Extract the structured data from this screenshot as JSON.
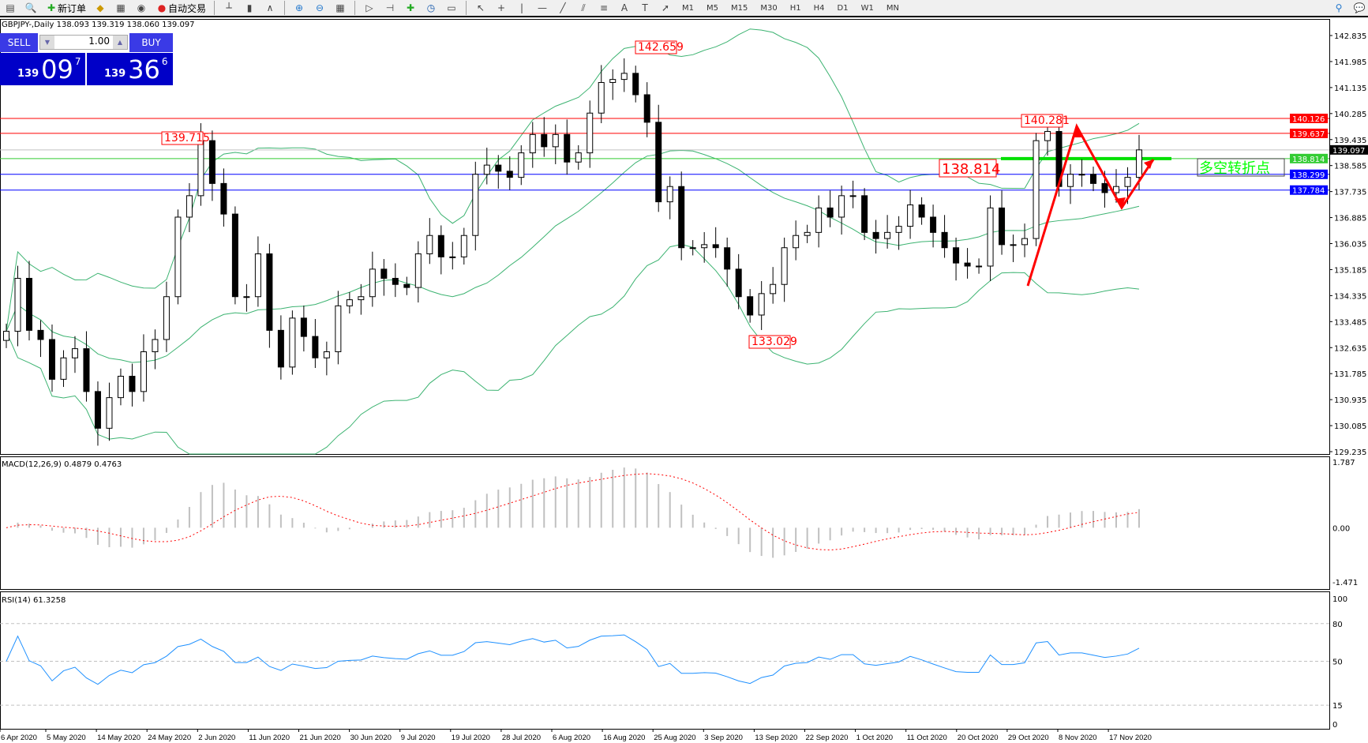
{
  "toolbar": {
    "new_order": "新订单",
    "auto_trading": "自动交易",
    "icons": [
      "new-chart-icon",
      "zoom-profile-icon",
      "new-order-icon",
      "market-watch-icon",
      "data-window-icon",
      "signals-icon",
      "auto-trading-icon",
      "bar-chart-icon",
      "candlestick-icon",
      "line-chart-icon",
      "zoom-in-icon",
      "zoom-out-icon",
      "tile-windows-icon",
      "autoscroll-icon",
      "chart-shift-icon",
      "indicators-icon",
      "periods-icon",
      "templates-icon",
      "cursor-icon",
      "crosshair-icon",
      "vertical-line-icon",
      "horizontal-line-icon",
      "trendline-icon",
      "equidistant-channel-icon",
      "fibonacci-icon",
      "text-icon",
      "text-label-icon",
      "arrows-icon",
      "search-icon",
      "chat-icon"
    ],
    "timeframes": [
      "M1",
      "M5",
      "M15",
      "M30",
      "H1",
      "H4",
      "D1",
      "W1",
      "MN"
    ]
  },
  "chart": {
    "header": "GBPJPY-,Daily  138.093 139.319 138.060 139.097",
    "one_click": {
      "sell": "SELL",
      "buy": "BUY",
      "lots": "1.00",
      "bid_big": "139",
      "bid_mid": "09",
      "bid_sup": "7",
      "ask_big": "139",
      "ask_mid": "36",
      "ask_sup": "6"
    }
  },
  "chart_data": {
    "type": "candlestick",
    "symbol": "GBPJPY-",
    "timeframe": "Daily",
    "price_ticks": [
      "142.835",
      "141.985",
      "141.135",
      "140.285",
      "139.435",
      "138.585",
      "137.735",
      "136.885",
      "136.035",
      "135.185",
      "134.335",
      "133.485",
      "132.635",
      "131.785",
      "130.935",
      "130.085",
      "129.235"
    ],
    "ylim": [
      129.235,
      142.835
    ],
    "date_labels": [
      "6 Apr 2020",
      "5 May 2020",
      "14 May 2020",
      "24 May 2020",
      "2 Jun 2020",
      "11 Jun 2020",
      "21 Jun 2020",
      "30 Jun 2020",
      "9 Jul 2020",
      "19 Jul 2020",
      "28 Jul 2020",
      "6 Aug 2020",
      "16 Aug 2020",
      "25 Aug 2020",
      "3 Sep 2020",
      "13 Sep 2020",
      "22 Sep 2020",
      "1 Oct 2020",
      "11 Oct 2020",
      "20 Oct 2020",
      "29 Oct 2020",
      "8 Nov 2020",
      "17 Nov 2020"
    ],
    "close": [
      133.17,
      134.9,
      133.2,
      132.9,
      131.6,
      132.3,
      132.6,
      131.2,
      130.0,
      131.0,
      131.7,
      131.2,
      132.5,
      132.9,
      134.3,
      136.9,
      137.6,
      139.4,
      138.0,
      137.0,
      134.3,
      134.3,
      135.7,
      133.2,
      132.0,
      133.6,
      133.0,
      132.3,
      132.5,
      134.0,
      134.2,
      134.3,
      135.2,
      134.9,
      134.7,
      134.6,
      135.7,
      136.3,
      135.6,
      135.6,
      136.3,
      138.3,
      138.6,
      138.4,
      138.2,
      139.0,
      139.6,
      139.2,
      139.6,
      138.7,
      139.0,
      140.3,
      141.3,
      141.4,
      141.6,
      140.9,
      140.0,
      137.4,
      137.9,
      135.9,
      135.9,
      136.0,
      135.9,
      135.2,
      134.3,
      133.7,
      134.4,
      134.7,
      135.9,
      136.3,
      136.4,
      137.2,
      136.9,
      137.6,
      137.6,
      136.4,
      136.2,
      136.4,
      136.6,
      137.3,
      136.9,
      136.4,
      135.9,
      135.4,
      135.3,
      135.3,
      137.2,
      136.0,
      136.0,
      136.2,
      139.4,
      139.7,
      137.9,
      138.3,
      138.3,
      138.0,
      137.7,
      137.9,
      138.2,
      139.097
    ],
    "hlines": [
      {
        "price": "140.126",
        "color": "#ff0000"
      },
      {
        "price": "139.637",
        "color": "#ff0000"
      },
      {
        "price": "139.097",
        "color": "#000000",
        "line": "#c0c0c0"
      },
      {
        "price": "138.814",
        "color": "#33cc33"
      },
      {
        "price": "138.299",
        "color": "#0000ff"
      },
      {
        "price": "137.784",
        "color": "#0000ff"
      }
    ],
    "annotations": [
      {
        "text": "142.659",
        "bar": 53
      },
      {
        "text": "139.715",
        "bar": 17
      },
      {
        "text": "133.029",
        "bar": 65
      },
      {
        "text": "140.281",
        "bar": 91
      },
      {
        "text": "138.814",
        "bar": 84
      }
    ],
    "note_text": "多空转折点",
    "indicators": {
      "bollinger": {
        "period": 20,
        "deviation": 2,
        "color": "#3cb371"
      },
      "macd": {
        "label": "MACD(12,26,9) 0.4879 0.4763",
        "ticks": [
          "1.787",
          "0.00",
          "-1.471"
        ],
        "ylim": [
          -1.471,
          1.787
        ]
      },
      "rsi": {
        "label": "RSI(14) 61.3258",
        "ticks": [
          "100",
          "80",
          "50",
          "15",
          "0"
        ],
        "levels": [
          80,
          50,
          15
        ],
        "color": "#1e90ff"
      }
    }
  }
}
